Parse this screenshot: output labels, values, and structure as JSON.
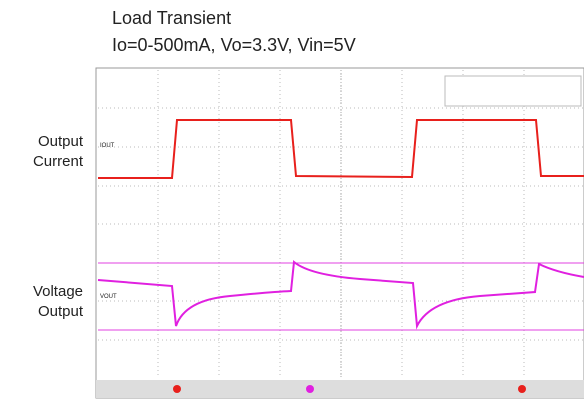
{
  "header": {
    "title": "Load Transient",
    "subtitle": "Io=0-500mA, Vo=3.3V, Vin=5V"
  },
  "labels": [
    {
      "lines": [
        "Output",
        "Current"
      ]
    },
    {
      "lines": [
        "Voltage",
        "Output"
      ]
    }
  ],
  "traces": [
    {
      "label": "IOUT"
    },
    {
      "label": "VOUT"
    }
  ]
}
